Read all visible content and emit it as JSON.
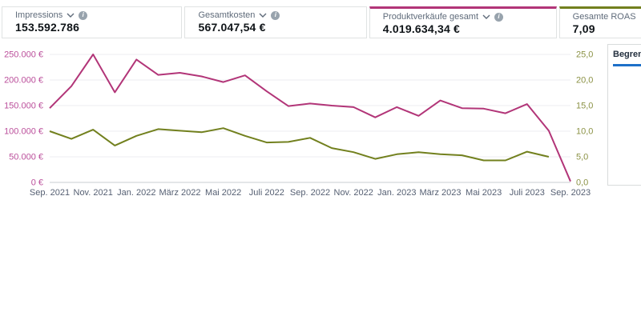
{
  "colors": {
    "sales_accent": "#b23578",
    "roas_accent": "#72801e",
    "tab_underline_blue": "#1d70c8",
    "left_axis_label": "#bb4f9b",
    "right_axis_label": "#8b9245",
    "x_axis_label": "#566073",
    "gridline": "#eceef0",
    "axis_line": "#c9cdd2"
  },
  "metric_cards": [
    {
      "label": "Impressions",
      "value": "153.592.786"
    },
    {
      "label": "Gesamtkosten",
      "value": "567.047,54 €"
    },
    {
      "label": "Produktverkäufe gesamt",
      "value": "4.019.634,34 €"
    },
    {
      "label": "Gesamte ROAS",
      "value": "7,09"
    }
  ],
  "side_panel": {
    "tab_label": "Begren"
  },
  "chart_data": {
    "type": "line",
    "title": "",
    "xlabel": "",
    "ylabel_left": "",
    "ylabel_right": "",
    "grid": true,
    "legend": "none",
    "x": [
      "Sep. 2021",
      "Okt. 2021",
      "Nov. 2021",
      "Dez. 2021",
      "Jan. 2022",
      "Feb. 2022",
      "März 2022",
      "Apr. 2022",
      "Mai 2022",
      "Juni 2022",
      "Juli 2022",
      "Aug. 2022",
      "Sep. 2022",
      "Okt. 2022",
      "Nov. 2022",
      "Dez. 2022",
      "Jan. 2023",
      "Feb. 2023",
      "März 2023",
      "Apr. 2023",
      "Mai 2023",
      "Juni 2023",
      "Juli 2023",
      "Aug. 2023",
      "Sep. 2023"
    ],
    "x_tick_labels": [
      "Sep. 2021",
      "Nov. 2021",
      "Jan. 2022",
      "März 2022",
      "Mai 2022",
      "Juli 2022",
      "Sep. 2022",
      "Nov. 2022",
      "Jan. 2023",
      "März 2023",
      "Mai 2023",
      "Juli 2023",
      "Sep. 2023"
    ],
    "series": [
      {
        "name": "Produktverkäufe gesamt",
        "axis": "left",
        "color": "#b23578",
        "values": [
          145000,
          188000,
          250000,
          176000,
          240000,
          210000,
          214000,
          207000,
          196000,
          209000,
          178000,
          149000,
          154000,
          150000,
          147000,
          127000,
          147000,
          130000,
          160000,
          145000,
          144000,
          135000,
          153000,
          101000,
          2000
        ]
      },
      {
        "name": "Gesamte ROAS",
        "axis": "right",
        "color": "#72801e",
        "values": [
          10.0,
          8.5,
          10.3,
          7.2,
          9.1,
          10.4,
          10.1,
          9.8,
          10.6,
          9.1,
          7.8,
          7.9,
          8.7,
          6.7,
          5.9,
          4.6,
          5.5,
          5.9,
          5.5,
          5.3,
          4.3,
          4.3,
          6.0,
          5.0,
          null
        ]
      }
    ],
    "left_axis": {
      "min": 0,
      "max": 250000,
      "tick_labels": [
        "0 €",
        "50.000 €",
        "100.000 €",
        "150.000 €",
        "200.000 €",
        "250.000 €"
      ]
    },
    "right_axis": {
      "min": 0,
      "max": 25,
      "tick_labels": [
        "0,0",
        "5,0",
        "10,0",
        "15,0",
        "20,0",
        "25,0"
      ]
    }
  }
}
